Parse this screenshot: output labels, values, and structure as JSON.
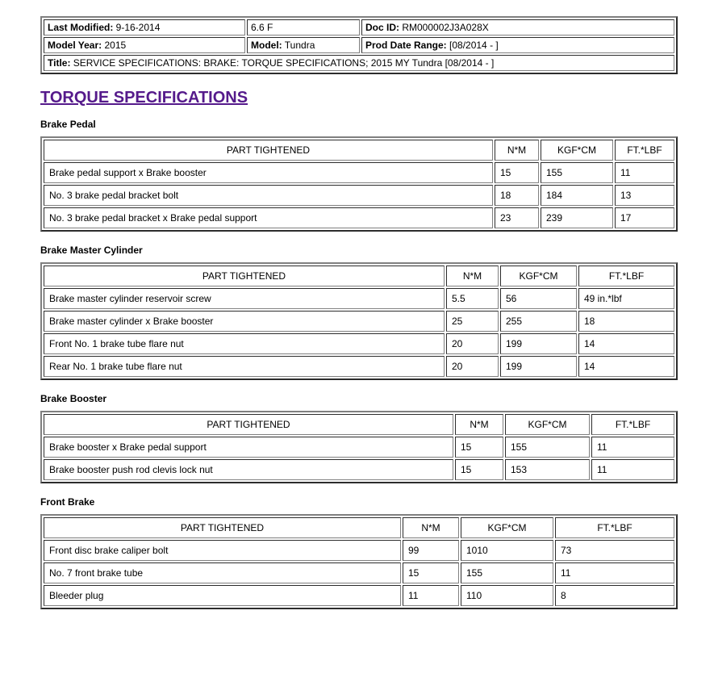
{
  "meta": {
    "last_modified_label": "Last Modified:",
    "last_modified_value": " 9-16-2014",
    "version": "6.6 F",
    "doc_id_label": "Doc ID:",
    "doc_id_value": " RM000002J3A028X",
    "model_year_label": "Model Year:",
    "model_year_value": " 2015",
    "model_label": "Model:",
    "model_value": " Tundra",
    "prod_date_label": "Prod Date Range:",
    "prod_date_value": " [08/2014 -            ]",
    "title_label": "Title:",
    "title_value": " SERVICE SPECIFICATIONS: BRAKE: TORQUE SPECIFICATIONS; 2015 MY Tundra [08/2014 -        ]"
  },
  "page_title": "TORQUE SPECIFICATIONS",
  "headers": {
    "part": "PART TIGHTENED",
    "nm": "N*M",
    "kgfcm": "KGF*CM",
    "ftlbf": "FT.*LBF"
  },
  "sections": {
    "brake_pedal": {
      "label": "Brake Pedal",
      "col_widths": [
        "557px",
        "55px",
        "90px",
        ""
      ],
      "rows": [
        {
          "part": "Brake pedal support x Brake booster",
          "nm": "15",
          "kgf": "155",
          "ft": "11"
        },
        {
          "part": "No. 3 brake pedal bracket bolt",
          "nm": "18",
          "kgf": "184",
          "ft": "13"
        },
        {
          "part": "No. 3 brake pedal bracket x Brake pedal support",
          "nm": "23",
          "kgf": "239",
          "ft": "17"
        }
      ]
    },
    "brake_master_cylinder": {
      "label": "Brake Master Cylinder",
      "col_widths": [
        "497px",
        "65px",
        "95px",
        ""
      ],
      "rows": [
        {
          "part": "Brake master cylinder reservoir screw",
          "nm": "5.5",
          "kgf": "56",
          "ft": "49 in.*lbf"
        },
        {
          "part": "Brake master cylinder x Brake booster",
          "nm": "25",
          "kgf": "255",
          "ft": "18"
        },
        {
          "part": "Front No. 1 brake tube flare nut",
          "nm": "20",
          "kgf": "199",
          "ft": "14"
        },
        {
          "part": "Rear No. 1 brake tube flare nut",
          "nm": "20",
          "kgf": "199",
          "ft": "14"
        }
      ]
    },
    "brake_booster": {
      "label": "Brake Booster",
      "col_widths": [
        "508px",
        "60px",
        "105px",
        ""
      ],
      "rows": [
        {
          "part": "Brake booster x Brake pedal support",
          "nm": "15",
          "kgf": "155",
          "ft": "11"
        },
        {
          "part": "Brake booster push rod clevis lock nut",
          "nm": "15",
          "kgf": "153",
          "ft": "11"
        }
      ]
    },
    "front_brake": {
      "label": "Front Brake",
      "col_widths": [
        "443px",
        "70px",
        "115px",
        ""
      ],
      "rows": [
        {
          "part": "Front disc brake caliper bolt",
          "nm": "99",
          "kgf": "1010",
          "ft": "73"
        },
        {
          "part": "No. 7 front brake tube",
          "nm": "15",
          "kgf": "155",
          "ft": "11"
        },
        {
          "part": "Bleeder plug",
          "nm": "11",
          "kgf": "110",
          "ft": "8"
        }
      ]
    }
  }
}
